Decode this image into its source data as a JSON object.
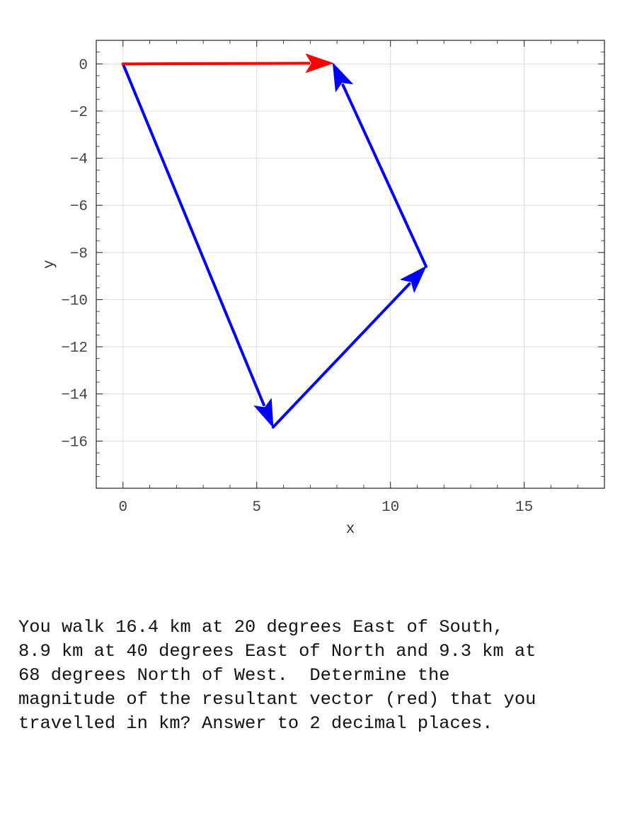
{
  "chart_data": {
    "type": "line",
    "title": "",
    "xlabel": "x",
    "ylabel": "y",
    "xlim": [
      -1,
      18
    ],
    "ylim": [
      -18,
      1
    ],
    "xticks": [
      0,
      5,
      10,
      15
    ],
    "xtick_labels": [
      "0",
      "5",
      "10",
      "15"
    ],
    "yticks": [
      0,
      -2,
      -4,
      -6,
      -8,
      -10,
      -12,
      -14,
      -16
    ],
    "ytick_labels": [
      "0",
      "−2",
      "−4",
      "−6",
      "−8",
      "−10",
      "−12",
      "−14",
      "−16"
    ],
    "grid": true,
    "vectors": [
      {
        "from": [
          0,
          0
        ],
        "to": [
          5.61,
          -15.41
        ],
        "color": "#0000ff"
      },
      {
        "from": [
          5.61,
          -15.41
        ],
        "to": [
          11.33,
          -8.59
        ],
        "color": "#0000ff"
      },
      {
        "from": [
          11.33,
          -8.59
        ],
        "to": [
          7.85,
          0.03
        ],
        "color": "#0000ff"
      },
      {
        "from": [
          0,
          0
        ],
        "to": [
          7.85,
          0.03
        ],
        "color": "#ff0000"
      }
    ]
  },
  "question": {
    "lines": [
      "You walk 16.4 km at 20 degrees East of South,",
      "8.9 km at 40 degrees East of North and 9.3 km at",
      "68 degrees North of West.  Determine the",
      "magnitude of the resultant vector (red) that you",
      "travelled in km? Answer to 2 decimal places."
    ]
  }
}
